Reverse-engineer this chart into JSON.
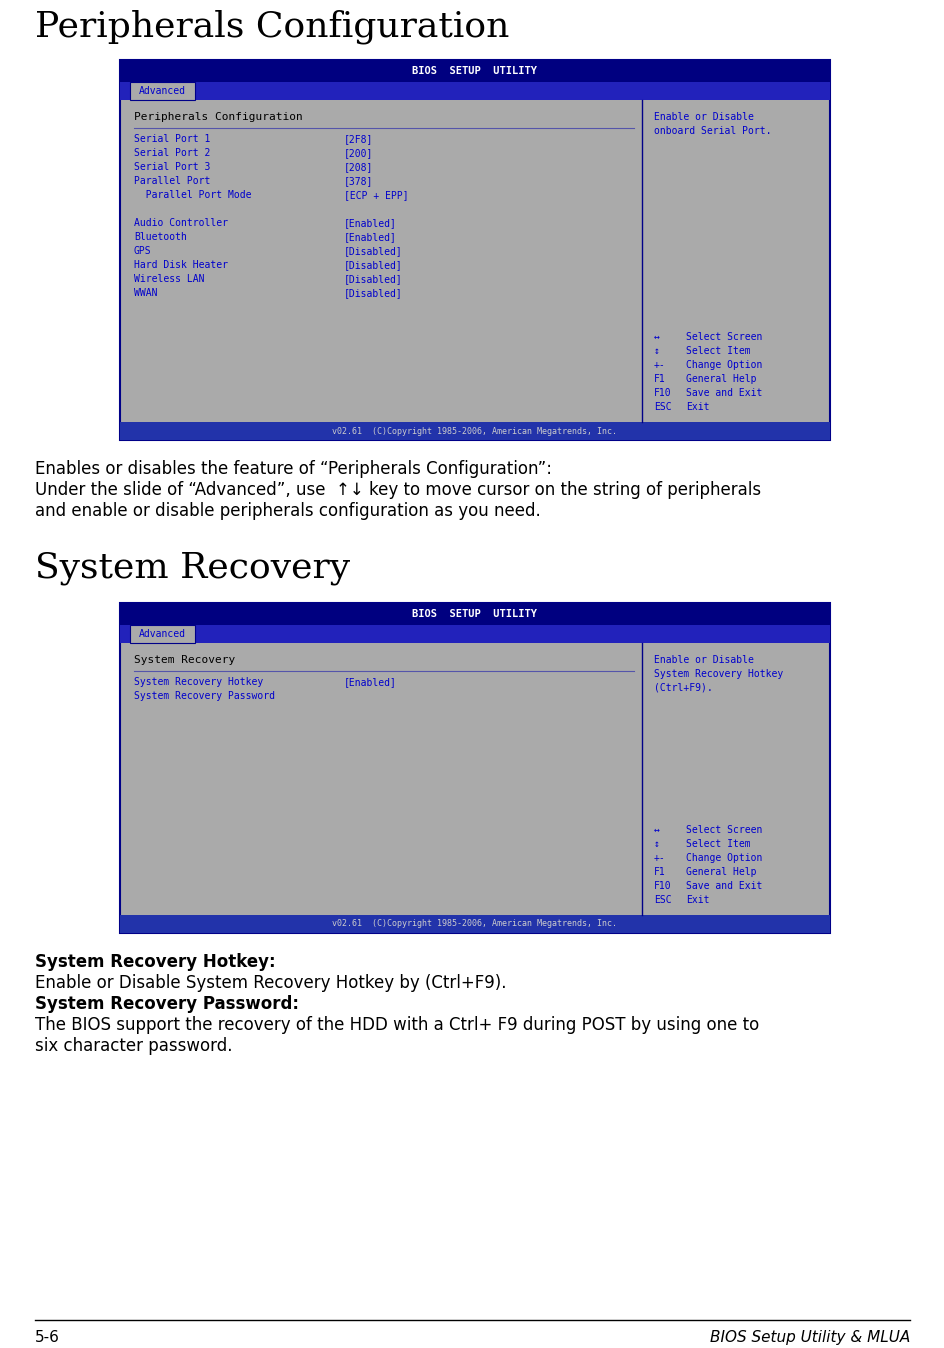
{
  "title1": "Peripherals Configuration",
  "title2": "System Recovery",
  "bg_color": "#ffffff",
  "bios_header_bg": "#000080",
  "bios_title_color": "#ffffff",
  "tab_bg": "#aaaaaa",
  "tab_text_color": "#0000cc",
  "menu_bg": "#aaaaaa",
  "menu_border": "#000088",
  "menu_text_color": "#0000cc",
  "right_panel_text": "#0000cc",
  "tab_bar_bg": "#2222bb",
  "screen_border": "#000088",
  "footer_bg": "#2233aa",
  "footer_text": "v02.61  (C)Copyright 1985-2006, American Megatrends, Inc.",
  "page_footer_left": "5-6",
  "page_footer_right": "BIOS Setup Utility & MLUA",
  "screen1": {
    "header": "BIOS  SETUP  UTILITY",
    "tab": "Advanced",
    "title": "Peripherals Configuration",
    "left_items": [
      [
        "Serial Port 1",
        "[2F8]"
      ],
      [
        "Serial Port 2",
        "[200]"
      ],
      [
        "Serial Port 3",
        "[208]"
      ],
      [
        "Parallel Port",
        "[378]"
      ],
      [
        "  Parallel Port Mode",
        "[ECP + EPP]"
      ],
      [
        "",
        ""
      ],
      [
        "Audio Controller",
        "[Enabled]"
      ],
      [
        "Bluetooth",
        "[Enabled]"
      ],
      [
        "GPS",
        "[Disabled]"
      ],
      [
        "Hard Disk Heater",
        "[Disabled]"
      ],
      [
        "Wireless LAN",
        "[Disabled]"
      ],
      [
        "WWAN",
        "[Disabled]"
      ]
    ],
    "right_top": [
      "Enable or Disable",
      "onboard Serial Port."
    ],
    "right_bottom": [
      [
        "↔",
        "Select Screen"
      ],
      [
        "↕",
        "Select Item"
      ],
      [
        "+-",
        "Change Option"
      ],
      [
        "F1",
        "General Help"
      ],
      [
        "F10",
        "Save and Exit"
      ],
      [
        "ESC",
        "Exit"
      ]
    ]
  },
  "screen2": {
    "header": "BIOS  SETUP  UTILITY",
    "tab": "Advanced",
    "title": "System Recovery",
    "left_items": [
      [
        "System Recovery Hotkey",
        "[Enabled]"
      ],
      [
        "System Recovery Password",
        ""
      ]
    ],
    "right_top": [
      "Enable or Disable",
      "System Recovery Hotkey",
      "(Ctrl+F9)."
    ],
    "right_bottom": [
      [
        "↔",
        "Select Screen"
      ],
      [
        "↕",
        "Select Item"
      ],
      [
        "+-",
        "Change Option"
      ],
      [
        "F1",
        "General Help"
      ],
      [
        "F10",
        "Save and Exit"
      ],
      [
        "ESC",
        "Exit"
      ]
    ]
  },
  "desc1_lines": [
    "Enables or disables the feature of “Peripherals Configuration”:",
    "Under the slide of “Advanced”, use  ↑↓ key to move cursor on the string of peripherals",
    "and enable or disable peripherals configuration as you need."
  ],
  "desc2_lines": [
    [
      "bold",
      "System Recovery Hotkey:"
    ],
    [
      "normal",
      "Enable or Disable System Recovery Hotkey by (Ctrl+F9)."
    ],
    [
      "bold",
      "System Recovery Password:"
    ],
    [
      "normal",
      "The BIOS support the recovery of the HDD with a Ctrl+ F9 during POST by using one to"
    ],
    [
      "normal",
      "six character password."
    ]
  ]
}
